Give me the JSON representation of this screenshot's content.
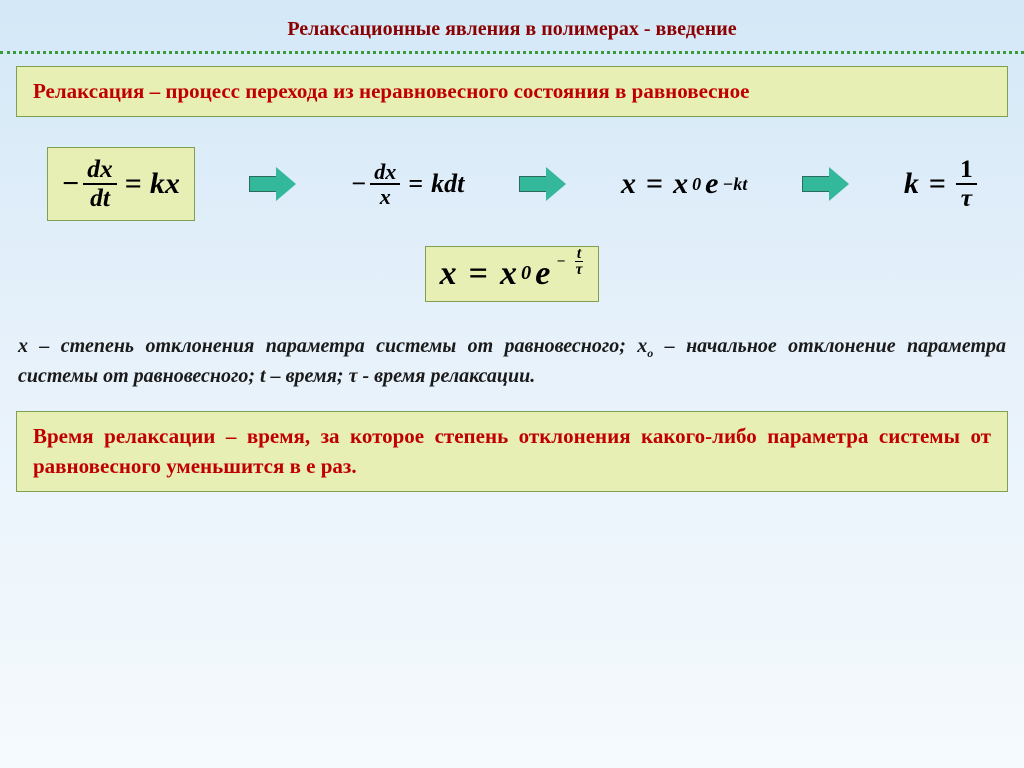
{
  "colors": {
    "title": "#8b0000",
    "dotted": "#3a9b3a",
    "box_bg": "#e8efb5",
    "box_border": "#7fa050",
    "def_text": "#c00000",
    "arrow_fill": "#33b89b",
    "arrow_border": "#2a6b5c",
    "desc_text": "#1a1a1a",
    "def2_text": "#c00000"
  },
  "title": "Релаксационные явления в полимерах - введение",
  "definition1": "Релаксация – процесс перехода из неравновесного состояния в равновесное",
  "equations": {
    "eq1": {
      "lhs_num": "dx",
      "lhs_den": "dt",
      "rhs": "kx"
    },
    "eq2": {
      "lhs_num": "dx",
      "lhs_den": "x",
      "rhs": "kdt"
    },
    "eq3": {
      "x": "x",
      "x0": "x",
      "x0_sub": "0",
      "e": "e",
      "exp_pre": "−",
      "exp": "kt"
    },
    "eq4": {
      "k": "k",
      "num": "1",
      "den": "τ"
    },
    "eq5": {
      "x": "x",
      "x0": "x",
      "x0_sub": "0",
      "e": "e",
      "exp_num": "t",
      "exp_den": "τ"
    }
  },
  "description": {
    "p1a": "x – степень отклонения параметра системы от равновесного; x",
    "p1a_sub": "o",
    "p1b": "– начальное отклонение параметра системы от равновесного; t – время; ",
    "tau": "τ",
    "p1c": " - время релаксации."
  },
  "definition2": "Время релаксации – время, за которое степень отклонения какого-либо параметра системы от равновесного уменьшится в e раз."
}
